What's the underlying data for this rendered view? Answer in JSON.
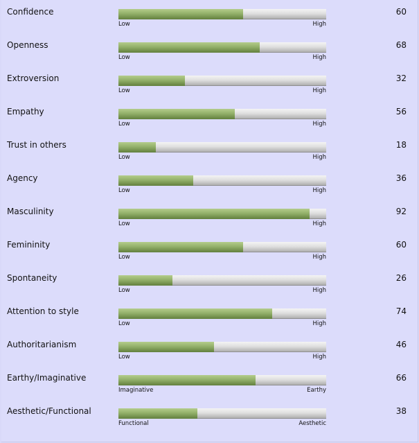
{
  "traits": [
    {
      "label": "Confidence",
      "value": 60,
      "low": "Low",
      "high": "High"
    },
    {
      "label": "Openness",
      "value": 68,
      "low": "Low",
      "high": "High"
    },
    {
      "label": "Extroversion",
      "value": 32,
      "low": "Low",
      "high": "High"
    },
    {
      "label": "Empathy",
      "value": 56,
      "low": "Low",
      "high": "High"
    },
    {
      "label": "Trust in others",
      "value": 18,
      "low": "Low",
      "high": "High"
    },
    {
      "label": "Agency",
      "value": 36,
      "low": "Low",
      "high": "High"
    },
    {
      "label": "Masculinity",
      "value": 92,
      "low": "Low",
      "high": "High"
    },
    {
      "label": "Femininity",
      "value": 60,
      "low": "Low",
      "high": "High"
    },
    {
      "label": "Spontaneity",
      "value": 26,
      "low": "Low",
      "high": "High"
    },
    {
      "label": "Attention to style",
      "value": 74,
      "low": "Low",
      "high": "High"
    },
    {
      "label": "Authoritarianism",
      "value": 46,
      "low": "Low",
      "high": "High"
    },
    {
      "label": "Earthy/Imaginative",
      "value": 66,
      "low": "Imaginative",
      "high": "Earthy"
    },
    {
      "label": "Aesthetic/Functional",
      "value": 38,
      "low": "Functional",
      "high": "Aesthetic"
    }
  ],
  "scale_max": 100,
  "colors": {
    "background": "#dcdcfb",
    "bar_fill": "#93b06a",
    "bar_track": "#dedede"
  }
}
